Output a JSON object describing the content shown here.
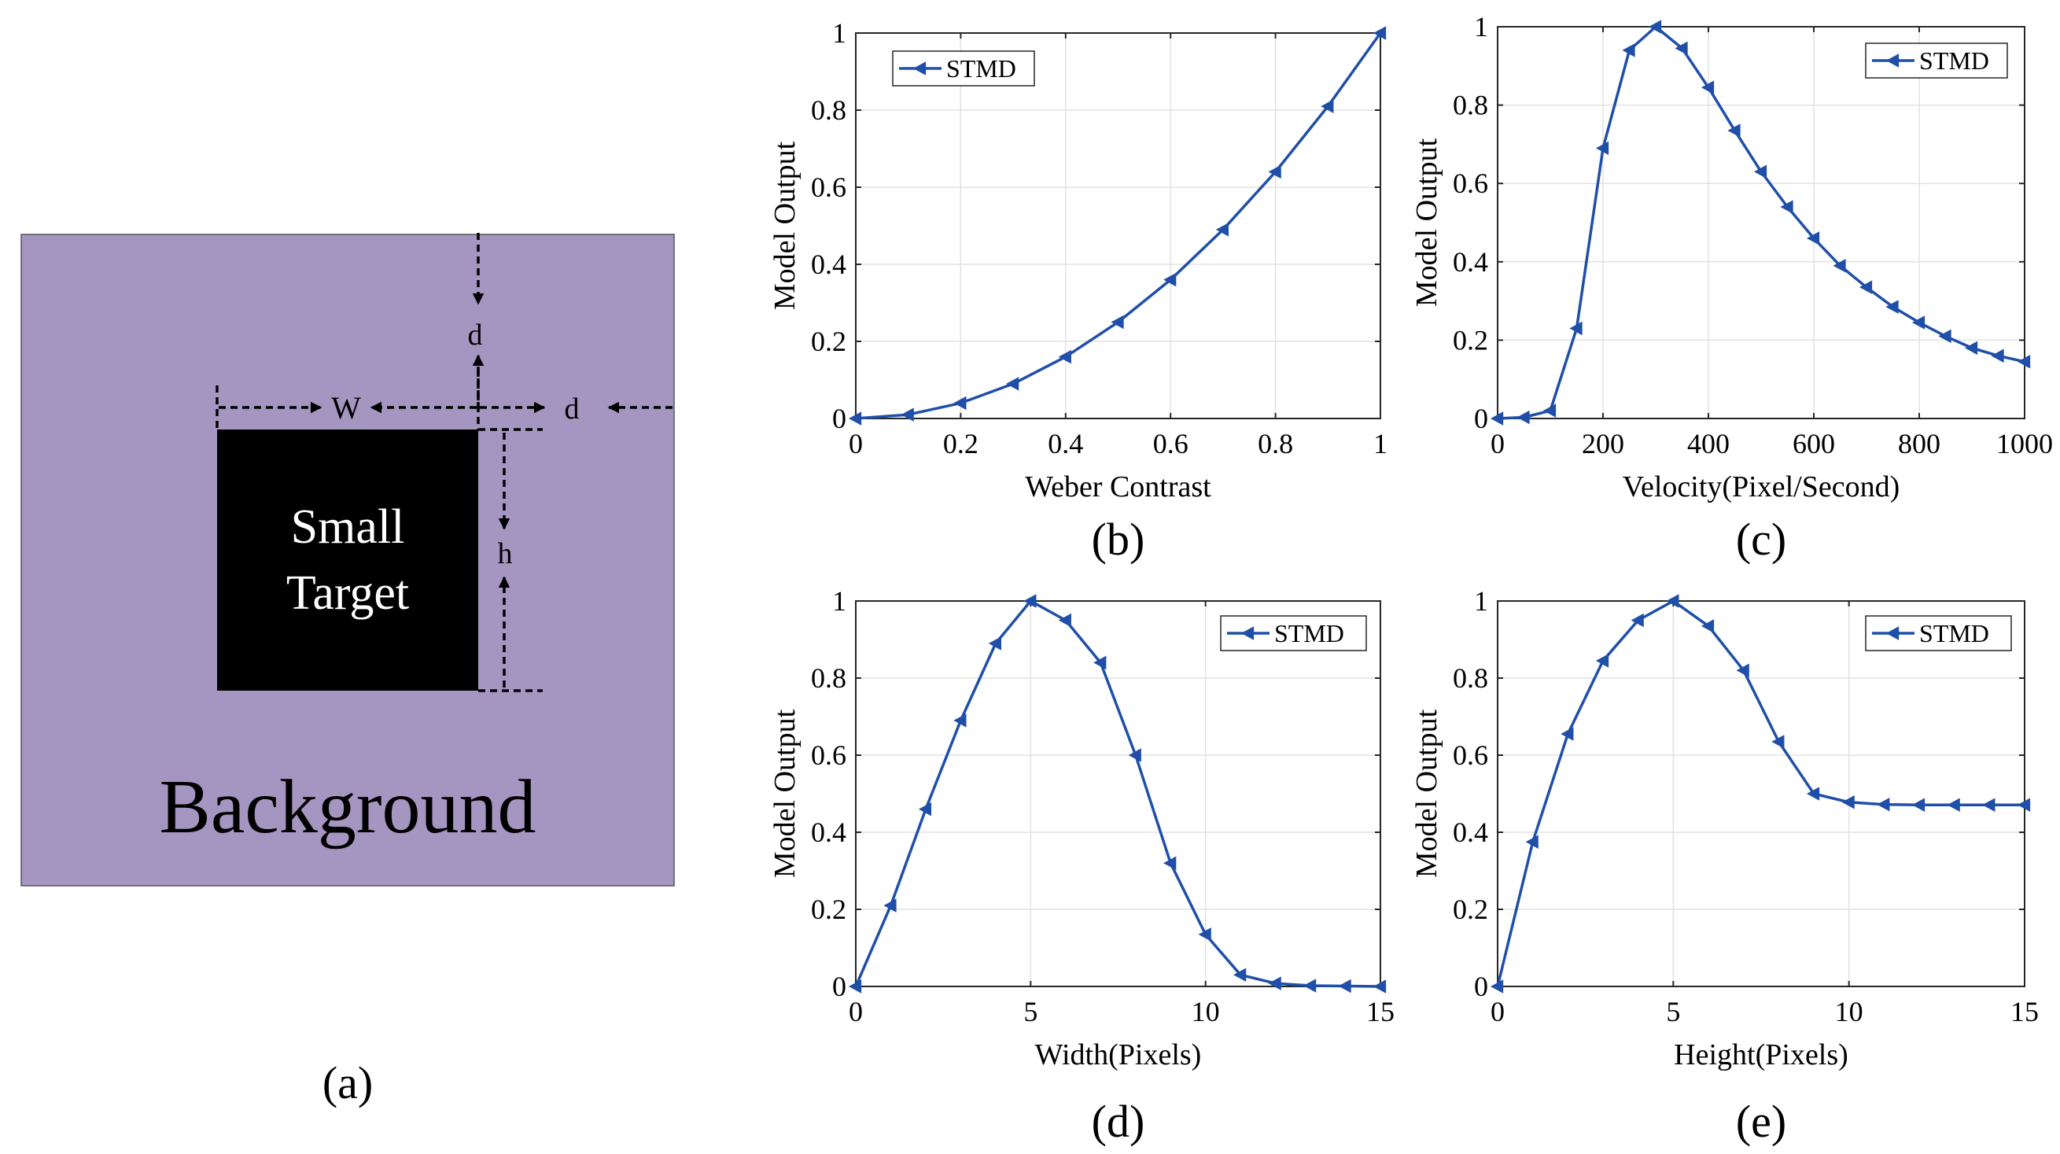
{
  "panel_a": {
    "target_line1": "Small",
    "target_line2": "Target",
    "background_label": "Background",
    "label_d_top": "d",
    "label_w": "W",
    "label_d_right": "d",
    "label_h": "h",
    "caption": "(a)",
    "colors": {
      "background": "#a596c1",
      "target": "#000000"
    }
  },
  "chart_data": [
    {
      "id": "b",
      "type": "line",
      "caption": "(b)",
      "title": "",
      "xlabel": "Weber Contrast",
      "ylabel": "Model Output",
      "xlim": [
        0,
        1
      ],
      "ylim": [
        0,
        1
      ],
      "xticks": [
        0,
        0.2,
        0.4,
        0.6,
        0.8,
        1
      ],
      "xticklabels": [
        "0",
        "0.2",
        "0.4",
        "0.6",
        "0.8",
        "1"
      ],
      "yticks": [
        0,
        0.2,
        0.4,
        0.6,
        0.8,
        1
      ],
      "yticklabels": [
        "0",
        "0.2",
        "0.4",
        "0.6",
        "0.8",
        "1"
      ],
      "grid": true,
      "legend": "top-left",
      "series": [
        {
          "name": "STMD",
          "color": "#1f4fa8",
          "marker": "triangle-left",
          "x": [
            0,
            0.1,
            0.2,
            0.3,
            0.4,
            0.5,
            0.6,
            0.7,
            0.8,
            0.9,
            1.0
          ],
          "values": [
            0,
            0.01,
            0.04,
            0.09,
            0.16,
            0.25,
            0.36,
            0.49,
            0.64,
            0.81,
            1.0
          ]
        }
      ]
    },
    {
      "id": "c",
      "type": "line",
      "caption": "(c)",
      "title": "",
      "xlabel": "Velocity(Pixel/Second)",
      "ylabel": "Model Output",
      "xlim": [
        0,
        1000
      ],
      "ylim": [
        0,
        1
      ],
      "xticks": [
        0,
        200,
        400,
        600,
        800,
        1000
      ],
      "xticklabels": [
        "0",
        "200",
        "400",
        "600",
        "800",
        "1000"
      ],
      "yticks": [
        0,
        0.2,
        0.4,
        0.6,
        0.8,
        1
      ],
      "yticklabels": [
        "0",
        "0.2",
        "0.4",
        "0.6",
        "0.8",
        "1"
      ],
      "grid": true,
      "legend": "top-right",
      "series": [
        {
          "name": "STMD",
          "color": "#1f4fa8",
          "marker": "triangle-left",
          "x": [
            0,
            50,
            100,
            150,
            200,
            250,
            300,
            350,
            400,
            450,
            500,
            550,
            600,
            650,
            700,
            750,
            800,
            850,
            900,
            950,
            1000
          ],
          "values": [
            0,
            0.003,
            0.02,
            0.23,
            0.69,
            0.94,
            1.0,
            0.945,
            0.845,
            0.735,
            0.63,
            0.54,
            0.46,
            0.39,
            0.335,
            0.285,
            0.245,
            0.21,
            0.18,
            0.16,
            0.145
          ]
        }
      ]
    },
    {
      "id": "d",
      "type": "line",
      "caption": "(d)",
      "title": "",
      "xlabel": "Width(Pixels)",
      "ylabel": "Model Output",
      "xlim": [
        0,
        15
      ],
      "ylim": [
        0,
        1
      ],
      "xticks": [
        0,
        5,
        10,
        15
      ],
      "xticklabels": [
        "0",
        "5",
        "10",
        "15"
      ],
      "yticks": [
        0,
        0.2,
        0.4,
        0.6,
        0.8,
        1
      ],
      "yticklabels": [
        "0",
        "0.2",
        "0.4",
        "0.6",
        "0.8",
        "1"
      ],
      "grid": true,
      "legend": "top-right",
      "series": [
        {
          "name": "STMD",
          "color": "#1f4fa8",
          "marker": "triangle-left",
          "x": [
            0,
            1,
            2,
            3,
            4,
            5,
            6,
            7,
            8,
            9,
            10,
            11,
            12,
            13,
            14,
            15
          ],
          "values": [
            0,
            0.21,
            0.46,
            0.69,
            0.89,
            1.0,
            0.95,
            0.84,
            0.6,
            0.32,
            0.135,
            0.03,
            0.008,
            0.002,
            0.001,
            0
          ]
        }
      ]
    },
    {
      "id": "e",
      "type": "line",
      "caption": "(e)",
      "title": "",
      "xlabel": "Height(Pixels)",
      "ylabel": "Model Output",
      "xlim": [
        0,
        15
      ],
      "ylim": [
        0,
        1
      ],
      "xticks": [
        0,
        5,
        10,
        15
      ],
      "xticklabels": [
        "0",
        "5",
        "10",
        "15"
      ],
      "yticks": [
        0,
        0.2,
        0.4,
        0.6,
        0.8,
        1
      ],
      "yticklabels": [
        "0",
        "0.2",
        "0.4",
        "0.6",
        "0.8",
        "1"
      ],
      "grid": true,
      "legend": "top-right",
      "series": [
        {
          "name": "STMD",
          "color": "#1f4fa8",
          "marker": "triangle-left",
          "x": [
            0,
            1,
            2,
            3,
            4,
            5,
            6,
            7,
            8,
            9,
            10,
            11,
            12,
            13,
            14,
            15
          ],
          "values": [
            0,
            0.375,
            0.655,
            0.845,
            0.95,
            1.0,
            0.935,
            0.82,
            0.635,
            0.5,
            0.478,
            0.472,
            0.471,
            0.471,
            0.471,
            0.471
          ]
        }
      ]
    }
  ]
}
